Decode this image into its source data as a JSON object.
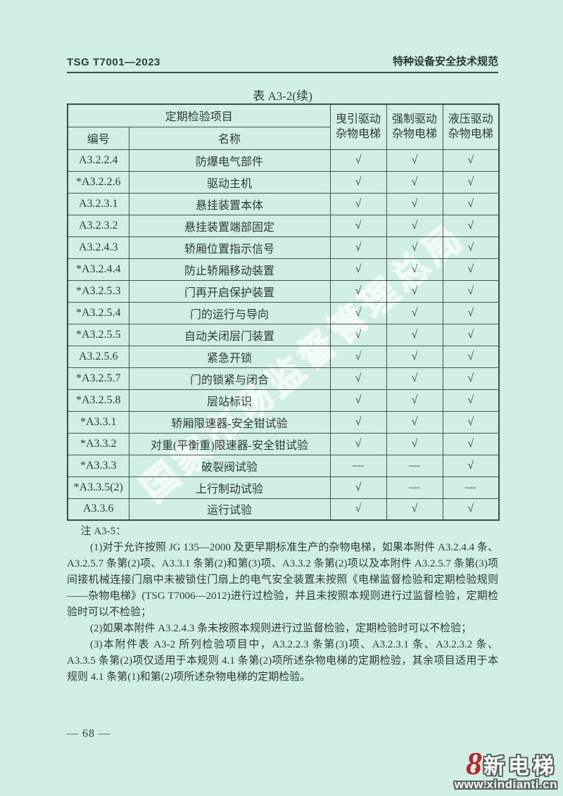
{
  "page": {
    "header_left": "TSG T7001—2023",
    "header_right": "特种设备安全技术规范",
    "page_number": "— 68 —"
  },
  "table": {
    "title": "表 A3-2(续)",
    "header": {
      "group": "定期检验项目",
      "col_no": "编号",
      "col_name": "名称",
      "col_traction_line1": "曳引驱动",
      "col_traction_line2": "杂物电梯",
      "col_positive_line1": "强制驱动",
      "col_positive_line2": "杂物电梯",
      "col_hydraulic_line1": "液压驱动",
      "col_hydraulic_line2": "杂物电梯"
    },
    "rows": [
      {
        "no": "A3.2.2.4",
        "name": "防爆电气部件",
        "c1": "√",
        "c2": "√",
        "c3": "√"
      },
      {
        "no": "*A3.2.2.6",
        "name": "驱动主机",
        "c1": "√",
        "c2": "√",
        "c3": "√"
      },
      {
        "no": "A3.2.3.1",
        "name": "悬挂装置本体",
        "c1": "√",
        "c2": "√",
        "c3": "√"
      },
      {
        "no": "A3.2.3.2",
        "name": "悬挂装置端部固定",
        "c1": "√",
        "c2": "√",
        "c3": "√"
      },
      {
        "no": "A3.2.4.3",
        "name": "轿厢位置指示信号",
        "c1": "√",
        "c2": "√",
        "c3": "√"
      },
      {
        "no": "*A3.2.4.4",
        "name": "防止轿厢移动装置",
        "c1": "√",
        "c2": "√",
        "c3": "√"
      },
      {
        "no": "*A3.2.5.3",
        "name": "门再开启保护装置",
        "c1": "√",
        "c2": "√",
        "c3": "√"
      },
      {
        "no": "*A3.2.5.4",
        "name": "门的运行与导向",
        "c1": "√",
        "c2": "√",
        "c3": "√"
      },
      {
        "no": "*A3.2.5.5",
        "name": "自动关闭层门装置",
        "c1": "√",
        "c2": "√",
        "c3": "√"
      },
      {
        "no": "A3.2.5.6",
        "name": "紧急开锁",
        "c1": "√",
        "c2": "√",
        "c3": "√"
      },
      {
        "no": "*A3.2.5.7",
        "name": "门的锁紧与闭合",
        "c1": "√",
        "c2": "√",
        "c3": "√"
      },
      {
        "no": "*A3.2.5.8",
        "name": "层站标识",
        "c1": "√",
        "c2": "√",
        "c3": "√"
      },
      {
        "no": "*A3.3.1",
        "name": "轿厢限速器-安全钳试验",
        "c1": "√",
        "c2": "√",
        "c3": "√"
      },
      {
        "no": "*A3.3.2",
        "name": "对重(平衡重)限速器-安全钳试验",
        "c1": "√",
        "c2": "√",
        "c3": "√"
      },
      {
        "no": "*A3.3.3",
        "name": "破裂阀试验",
        "c1": "—",
        "c2": "—",
        "c3": "√"
      },
      {
        "no": "*A3.3.5(2)",
        "name": "上行制动试验",
        "c1": "√",
        "c2": "—",
        "c3": "—"
      },
      {
        "no": "A3.3.6",
        "name": "运行试验",
        "c1": "√",
        "c2": "√",
        "c3": "√"
      }
    ]
  },
  "notes": {
    "title": "注 A3-5：",
    "items": [
      "(1)对于允许按照 JG 135—2000 及更早期标准生产的杂物电梯，如果本附件 A3.2.4.4 条、A3.2.5.7 条第(2)项、A3.3.1 条第(2)和第(3)项、A3.3.2 条第(2)项以及本附件 A3.2.5.7 条第(3)项间接机械连接门扇中未被锁住门扇上的电气安全装置未按照《电梯监督检验和定期检验规则——杂物电梯》(TSG T7006—2012)进行过检验，并且未按照本规则进行过监督检验，定期检验时可以不检验；",
      "(2)如果本附件 A3.2.4.3 条未按照本规则进行过监督检验，定期检验时可以不检验；",
      "(3)本附件表 A3-2 所列检验项目中，A3.2.2.3 条第(3)项、A3.2.3.1 条、A3.2.3.2 条、A3.3.5 条第(2)项仅适用于本规则 4.1 条第(2)项所述杂物电梯的定期检验，其余项目适用于本规则 4.1 条第(1)和第(2)项所述杂物电梯的定期检验。"
    ]
  },
  "watermark": {
    "text": "国家市场监督管理总局"
  },
  "logo": {
    "mark": "8",
    "heart": "♥",
    "name": "新电梯",
    "url": "www.xindianti.cn"
  },
  "colors": {
    "background": "#d2efe3",
    "text": "#2e3c37",
    "table_border": "#44544d",
    "logo_red": "#b8262b",
    "watermark_white": "#ffffff"
  }
}
